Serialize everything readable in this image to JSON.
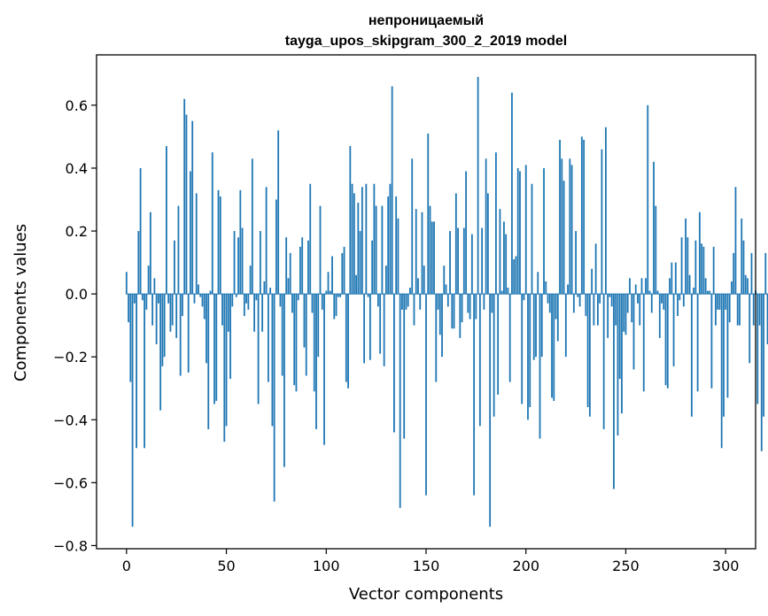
{
  "chart_data": {
    "type": "bar",
    "title": "непроницаемый",
    "subtitle": "tayga_upos_skipgram_300_2_2019 model",
    "xlabel": "Vector components",
    "ylabel": "Components values",
    "xlim": [
      -15,
      315
    ],
    "ylim": [
      -0.81,
      0.76
    ],
    "xticks": [
      0,
      50,
      100,
      150,
      200,
      250,
      300
    ],
    "xtick_labels": [
      "0",
      "50",
      "100",
      "150",
      "200",
      "250",
      "300"
    ],
    "yticks": [
      -0.8,
      -0.6,
      -0.4,
      -0.2,
      0.0,
      0.2,
      0.4,
      0.6
    ],
    "ytick_labels": [
      "−0.8",
      "−0.6",
      "−0.4",
      "−0.2",
      "0.0",
      "0.2",
      "0.4",
      "0.6"
    ],
    "grid": false,
    "bar_color": "#1f77b4",
    "values": [
      0.07,
      -0.09,
      -0.28,
      -0.74,
      -0.03,
      -0.49,
      0.2,
      0.4,
      -0.02,
      -0.49,
      -0.05,
      0.09,
      0.26,
      -0.1,
      0.05,
      -0.16,
      -0.03,
      -0.37,
      -0.23,
      -0.2,
      0.47,
      -0.03,
      -0.12,
      -0.1,
      0.17,
      -0.14,
      0.28,
      -0.26,
      -0.07,
      0.62,
      0.57,
      -0.25,
      0.39,
      0.55,
      -0.03,
      0.32,
      0.03,
      -0.01,
      -0.04,
      -0.08,
      -0.22,
      -0.43,
      0.01,
      0.45,
      -0.35,
      -0.34,
      0.33,
      0.31,
      -0.1,
      -0.47,
      -0.42,
      -0.12,
      -0.27,
      -0.04,
      0.2,
      -0.01,
      0.18,
      0.33,
      0.21,
      -0.07,
      -0.03,
      -0.05,
      0.09,
      0.43,
      -0.12,
      -0.02,
      -0.35,
      0.2,
      -0.12,
      0.04,
      0.34,
      -0.28,
      0.02,
      -0.42,
      -0.66,
      0.3,
      0.52,
      -0.04,
      -0.26,
      -0.55,
      0.18,
      0.05,
      0.13,
      -0.06,
      -0.29,
      -0.31,
      -0.02,
      0.15,
      0.18,
      -0.17,
      -0.26,
      0.17,
      0.35,
      -0.06,
      -0.31,
      -0.43,
      -0.2,
      0.28,
      -0.05,
      -0.48,
      0.01,
      0.07,
      0.01,
      0.12,
      -0.08,
      -0.07,
      -0.01,
      -0.01,
      0.13,
      0.15,
      -0.28,
      -0.3,
      0.47,
      0.35,
      0.32,
      0.06,
      0.29,
      0.2,
      0.34,
      -0.22,
      0.35,
      -0.01,
      -0.21,
      0.17,
      0.35,
      0.28,
      -0.04,
      -0.19,
      0.28,
      -0.23,
      0.09,
      0.31,
      0.35,
      0.66,
      -0.44,
      0.31,
      0.24,
      -0.68,
      -0.05,
      -0.46,
      -0.05,
      -0.04,
      0.02,
      0.43,
      -0.1,
      0.27,
      0.05,
      -0.05,
      0.26,
      0.09,
      -0.64,
      0.51,
      0.28,
      0.23,
      0.23,
      -0.28,
      -0.05,
      -0.13,
      -0.2,
      0.09,
      0.03,
      -0.04,
      0.2,
      -0.11,
      -0.11,
      0.32,
      0.21,
      -0.14,
      -0.09,
      0.21,
      0.39,
      -0.06,
      -0.08,
      0.19,
      -0.64,
      -0.08,
      0.69,
      -0.42,
      0.21,
      -0.05,
      0.43,
      0.32,
      -0.74,
      -0.06,
      -0.39,
      0.45,
      -0.32,
      0.27,
      0.01,
      0.23,
      0.19,
      0.02,
      -0.28,
      0.64,
      0.11,
      0.12,
      0.4,
      0.39,
      -0.35,
      -0.02,
      0.41,
      -0.4,
      -0.36,
      0.35,
      -0.21,
      -0.2,
      0.07,
      -0.46,
      -0.2,
      0.4,
      0.04,
      -0.03,
      -0.06,
      -0.33,
      -0.34,
      -0.08,
      -0.15,
      0.49,
      0.43,
      0.36,
      -0.2,
      0.03,
      0.43,
      0.41,
      -0.06,
      0.2,
      -0.01,
      -0.04,
      0.5,
      0.49,
      -0.07,
      -0.36,
      -0.39,
      0.08,
      -0.1,
      0.16,
      -0.1,
      -0.03,
      0.46,
      -0.43,
      0.53,
      -0.14,
      -0.01,
      -0.04,
      -0.62,
      -0.1,
      -0.45,
      -0.27,
      -0.38,
      -0.12,
      -0.13,
      -0.06,
      0.05,
      -0.09,
      -0.24,
      0.03,
      -0.03,
      -0.1,
      0.05,
      -0.31,
      0.05,
      0.6,
      0.01,
      -0.06,
      0.42,
      0.28,
      0.01,
      -0.14,
      -0.03,
      -0.05,
      -0.29,
      -0.3,
      0.05,
      0.1,
      -0.23,
      0.1,
      -0.07,
      -0.02,
      0.18,
      -0.04,
      0.24,
      0.18,
      0.06,
      -0.39,
      0.02,
      0.17,
      -0.31,
      0.26,
      0.16,
      0.15,
      0.05,
      0.01,
      0.01,
      -0.3,
      0.15,
      -0.1,
      -0.05,
      -0.05,
      -0.49,
      -0.39,
      -0.05,
      -0.33,
      -0.09,
      0.04,
      0.13,
      0.34,
      -0.1,
      -0.1,
      0.24,
      0.17,
      0.06,
      0.05,
      -0.22,
      0.13,
      -0.1,
      0.01,
      -0.35,
      -0.1,
      -0.5,
      -0.39,
      0.13,
      -0.16
    ]
  }
}
